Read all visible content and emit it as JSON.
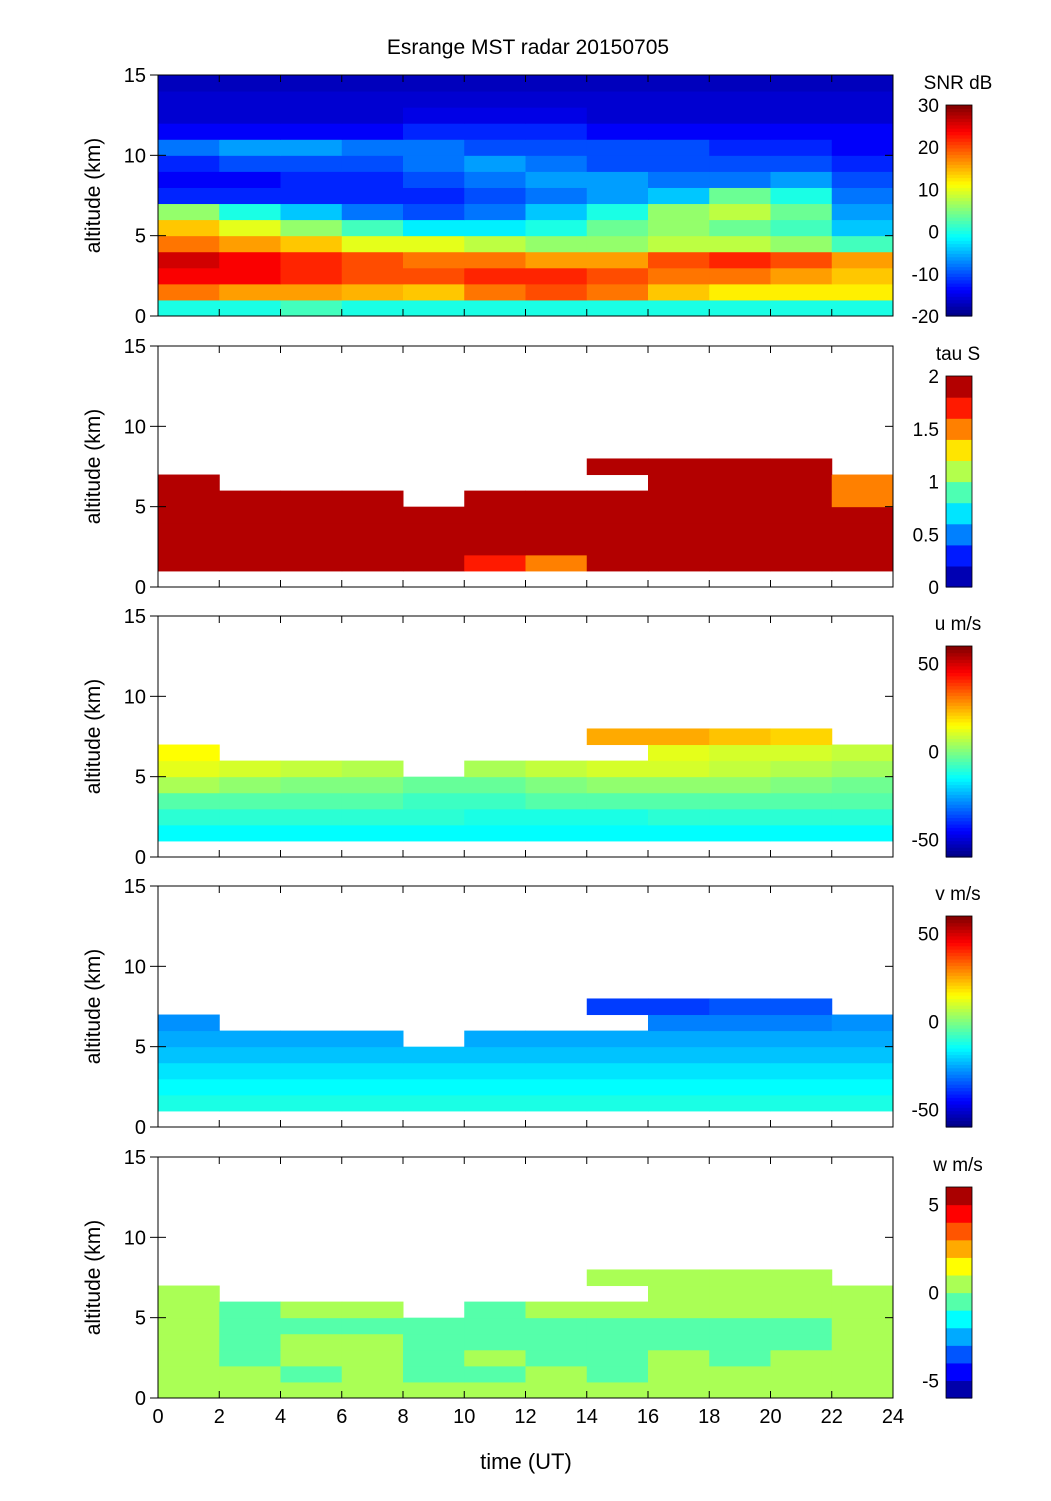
{
  "title": "Esrange MST radar 20150705",
  "xlabel": "time (UT)",
  "x_ticks": [
    0,
    2,
    4,
    6,
    8,
    10,
    12,
    14,
    16,
    18,
    20,
    22,
    24
  ],
  "chart_data": [
    {
      "type": "heatmap",
      "name": "snr",
      "ylabel": "altitude (km)",
      "colorbar_label": "SNR dB",
      "clim": [
        -20,
        30
      ],
      "colorbar_ticks": [
        30,
        20,
        10,
        0,
        -10,
        -20
      ],
      "levels": null,
      "xlim": [
        0,
        24
      ],
      "ylim": [
        0,
        15
      ],
      "y_ticks": [
        0,
        5,
        10,
        15
      ],
      "time_bins_start": [
        0,
        2,
        4,
        6,
        8,
        10,
        12,
        14,
        16,
        18,
        20,
        22
      ],
      "altitude_bins_start": [
        0,
        1,
        2,
        3,
        4,
        5,
        6,
        7,
        8,
        9,
        10,
        11,
        12,
        13,
        14
      ],
      "values": [
        [
          0,
          0,
          2,
          0,
          0,
          0,
          0,
          0,
          0,
          0,
          0,
          0
        ],
        [
          18,
          16,
          16,
          15,
          14,
          18,
          20,
          18,
          14,
          12,
          12,
          12
        ],
        [
          24,
          24,
          22,
          20,
          20,
          22,
          22,
          20,
          18,
          18,
          16,
          14
        ],
        [
          26,
          24,
          22,
          20,
          18,
          18,
          16,
          16,
          20,
          22,
          20,
          16
        ],
        [
          18,
          16,
          14,
          10,
          10,
          8,
          6,
          6,
          8,
          8,
          6,
          2
        ],
        [
          14,
          10,
          6,
          2,
          -2,
          -2,
          0,
          4,
          6,
          4,
          2,
          -4
        ],
        [
          6,
          0,
          -4,
          -8,
          -10,
          -8,
          -4,
          0,
          6,
          8,
          4,
          -6
        ],
        [
          -12,
          -12,
          -12,
          -12,
          -12,
          -10,
          -8,
          -6,
          -4,
          4,
          0,
          -8
        ],
        [
          -14,
          -14,
          -12,
          -12,
          -10,
          -8,
          -6,
          -6,
          -8,
          -8,
          -6,
          -10
        ],
        [
          -12,
          -10,
          -10,
          -10,
          -8,
          -6,
          -8,
          -10,
          -10,
          -10,
          -10,
          -12
        ],
        [
          -8,
          -6,
          -6,
          -8,
          -8,
          -10,
          -10,
          -10,
          -10,
          -12,
          -12,
          -14
        ],
        [
          -14,
          -14,
          -14,
          -14,
          -12,
          -12,
          -12,
          -14,
          -14,
          -14,
          -14,
          -14
        ],
        [
          -16,
          -16,
          -16,
          -16,
          -15,
          -15,
          -15,
          -16,
          -16,
          -16,
          -16,
          -16
        ],
        [
          -16,
          -16,
          -16,
          -16,
          -16,
          -16,
          -16,
          -16,
          -16,
          -16,
          -16,
          -16
        ],
        [
          -17,
          -17,
          -17,
          -17,
          -17,
          -17,
          -17,
          -17,
          -17,
          -17,
          -17,
          -17
        ]
      ]
    },
    {
      "type": "heatmap",
      "name": "tau",
      "ylabel": "altitude (km)",
      "colorbar_label": "tau S",
      "clim": [
        0,
        2
      ],
      "colorbar_ticks": [
        2,
        1.5,
        1,
        0.5,
        0
      ],
      "levels": 10,
      "xlim": [
        0,
        24
      ],
      "ylim": [
        0,
        15
      ],
      "y_ticks": [
        0,
        5,
        10,
        15
      ],
      "time_bins_start": [
        0,
        2,
        4,
        6,
        8,
        10,
        12,
        14,
        16,
        18,
        20,
        22
      ],
      "altitude_bins_start": [
        0,
        1,
        2,
        3,
        4,
        5,
        6,
        7,
        8,
        9,
        10,
        11,
        12,
        13,
        14
      ],
      "values": [
        [
          null,
          null,
          null,
          null,
          null,
          null,
          null,
          null,
          null,
          null,
          null,
          null
        ],
        [
          2,
          2,
          2,
          2,
          2,
          1.6,
          1.4,
          1.8,
          1.9,
          2,
          2,
          2
        ],
        [
          2,
          2,
          2,
          2,
          2,
          2,
          2,
          2,
          2,
          2,
          2,
          2
        ],
        [
          2,
          2,
          2,
          2,
          2,
          2,
          2,
          2,
          2,
          2,
          2,
          2
        ],
        [
          2,
          2,
          2,
          2,
          2,
          2,
          2,
          1.8,
          2,
          2,
          2,
          2
        ],
        [
          2,
          2,
          2,
          2,
          null,
          2,
          2,
          2,
          2,
          2,
          2,
          1.5
        ],
        [
          2,
          null,
          null,
          null,
          null,
          null,
          null,
          null,
          2,
          2,
          2,
          1.4
        ],
        [
          null,
          null,
          null,
          null,
          null,
          null,
          null,
          2,
          2,
          2,
          2,
          null
        ],
        [
          null,
          null,
          null,
          null,
          null,
          null,
          null,
          null,
          null,
          null,
          null,
          null
        ],
        [
          null,
          null,
          null,
          null,
          null,
          null,
          null,
          null,
          null,
          null,
          null,
          null
        ],
        [
          null,
          null,
          null,
          null,
          null,
          null,
          null,
          null,
          null,
          null,
          null,
          null
        ],
        [
          null,
          null,
          null,
          null,
          null,
          null,
          null,
          null,
          null,
          null,
          null,
          null
        ],
        [
          null,
          null,
          null,
          null,
          null,
          null,
          null,
          null,
          null,
          null,
          null,
          null
        ],
        [
          null,
          null,
          null,
          null,
          null,
          null,
          null,
          null,
          null,
          null,
          null,
          null
        ],
        [
          null,
          null,
          null,
          null,
          null,
          null,
          null,
          null,
          null,
          null,
          null,
          null
        ]
      ]
    },
    {
      "type": "heatmap",
      "name": "u",
      "ylabel": "altitude (km)",
      "colorbar_label": "u m/s",
      "clim": [
        -60,
        60
      ],
      "colorbar_ticks": [
        50,
        0,
        -50
      ],
      "levels": null,
      "xlim": [
        0,
        24
      ],
      "ylim": [
        0,
        15
      ],
      "y_ticks": [
        0,
        5,
        10,
        15
      ],
      "time_bins_start": [
        0,
        2,
        4,
        6,
        8,
        10,
        12,
        14,
        16,
        18,
        20,
        22
      ],
      "altitude_bins_start": [
        0,
        1,
        2,
        3,
        4,
        5,
        6,
        7,
        8,
        9,
        10,
        11,
        12,
        13,
        14
      ],
      "values": [
        [
          null,
          null,
          null,
          null,
          null,
          null,
          null,
          null,
          null,
          null,
          null,
          null
        ],
        [
          -15,
          -15,
          -15,
          -15,
          -15,
          -15,
          -15,
          -15,
          -15,
          -15,
          -15,
          -15
        ],
        [
          -10,
          -10,
          -10,
          -10,
          -10,
          -12,
          -12,
          -12,
          -10,
          -10,
          -10,
          -10
        ],
        [
          -5,
          -5,
          -5,
          -5,
          -8,
          -8,
          -5,
          -5,
          -5,
          -5,
          -5,
          -5
        ],
        [
          5,
          2,
          0,
          0,
          -3,
          -3,
          0,
          2,
          2,
          2,
          0,
          -2
        ],
        [
          12,
          10,
          8,
          6,
          null,
          5,
          8,
          10,
          10,
          8,
          6,
          4
        ],
        [
          15,
          null,
          null,
          null,
          null,
          null,
          null,
          null,
          12,
          10,
          10,
          8
        ],
        [
          null,
          null,
          null,
          null,
          null,
          null,
          null,
          25,
          25,
          22,
          20,
          null
        ],
        [
          null,
          null,
          null,
          null,
          null,
          null,
          null,
          null,
          null,
          null,
          null,
          null
        ],
        [
          null,
          null,
          null,
          null,
          null,
          null,
          null,
          null,
          null,
          null,
          null,
          null
        ],
        [
          null,
          null,
          null,
          null,
          null,
          null,
          null,
          null,
          null,
          null,
          null,
          null
        ],
        [
          null,
          null,
          null,
          null,
          null,
          null,
          null,
          null,
          null,
          null,
          null,
          null
        ],
        [
          null,
          null,
          null,
          null,
          null,
          null,
          null,
          null,
          null,
          null,
          null,
          null
        ],
        [
          null,
          null,
          null,
          null,
          null,
          null,
          null,
          null,
          null,
          null,
          null,
          null
        ],
        [
          null,
          null,
          null,
          null,
          null,
          null,
          null,
          null,
          null,
          null,
          null,
          null
        ]
      ]
    },
    {
      "type": "heatmap",
      "name": "v",
      "ylabel": "altitude (km)",
      "colorbar_label": "v m/s",
      "clim": [
        -60,
        60
      ],
      "colorbar_ticks": [
        50,
        0,
        -50
      ],
      "levels": null,
      "xlim": [
        0,
        24
      ],
      "ylim": [
        0,
        15
      ],
      "y_ticks": [
        0,
        5,
        10,
        15
      ],
      "time_bins_start": [
        0,
        2,
        4,
        6,
        8,
        10,
        12,
        14,
        16,
        18,
        20,
        22
      ],
      "altitude_bins_start": [
        0,
        1,
        2,
        3,
        4,
        5,
        6,
        7,
        8,
        9,
        10,
        11,
        12,
        13,
        14
      ],
      "values": [
        [
          null,
          null,
          null,
          null,
          null,
          null,
          null,
          null,
          null,
          null,
          null,
          null
        ],
        [
          -12,
          -12,
          -12,
          -12,
          -12,
          -12,
          -12,
          -12,
          -12,
          -12,
          -12,
          -12
        ],
        [
          -15,
          -15,
          -15,
          -15,
          -15,
          -15,
          -15,
          -15,
          -15,
          -15,
          -15,
          -15
        ],
        [
          -18,
          -18,
          -18,
          -18,
          -18,
          -18,
          -18,
          -18,
          -18,
          -18,
          -18,
          -18
        ],
        [
          -22,
          -22,
          -22,
          -22,
          -22,
          -22,
          -22,
          -22,
          -22,
          -22,
          -22,
          -22
        ],
        [
          -25,
          -25,
          -25,
          -25,
          null,
          -25,
          -25,
          -25,
          -25,
          -25,
          -25,
          -25
        ],
        [
          -28,
          null,
          null,
          null,
          null,
          null,
          null,
          null,
          -30,
          -30,
          -30,
          -28
        ],
        [
          null,
          null,
          null,
          null,
          null,
          null,
          null,
          -38,
          -38,
          -35,
          -35,
          null
        ],
        [
          null,
          null,
          null,
          null,
          null,
          null,
          null,
          null,
          null,
          null,
          null,
          null
        ],
        [
          null,
          null,
          null,
          null,
          null,
          null,
          null,
          null,
          null,
          null,
          null,
          null
        ],
        [
          null,
          null,
          null,
          null,
          null,
          null,
          null,
          null,
          null,
          null,
          null,
          null
        ],
        [
          null,
          null,
          null,
          null,
          null,
          null,
          null,
          null,
          null,
          null,
          null,
          null
        ],
        [
          null,
          null,
          null,
          null,
          null,
          null,
          null,
          null,
          null,
          null,
          null,
          null
        ],
        [
          null,
          null,
          null,
          null,
          null,
          null,
          null,
          null,
          null,
          null,
          null,
          null
        ],
        [
          null,
          null,
          null,
          null,
          null,
          null,
          null,
          null,
          null,
          null,
          null,
          null
        ]
      ]
    },
    {
      "type": "heatmap",
      "name": "w",
      "ylabel": "altitude (km)",
      "colorbar_label": "w m/s",
      "clim": [
        -6,
        6
      ],
      "colorbar_ticks": [
        5,
        0,
        -5
      ],
      "levels": 12,
      "xlim": [
        0,
        24
      ],
      "ylim": [
        0,
        15
      ],
      "y_ticks": [
        0,
        5,
        10,
        15
      ],
      "time_bins_start": [
        0,
        2,
        4,
        6,
        8,
        10,
        12,
        14,
        16,
        18,
        20,
        22
      ],
      "altitude_bins_start": [
        0,
        1,
        2,
        3,
        4,
        5,
        6,
        7,
        8,
        9,
        10,
        11,
        12,
        13,
        14
      ],
      "values": [
        [
          0.3,
          0.2,
          0.3,
          0.2,
          0.2,
          0.3,
          0.2,
          0.4,
          0.3,
          0.2,
          0.3,
          0.2
        ],
        [
          0.5,
          0,
          -0.3,
          0.2,
          -0.3,
          -0.8,
          0.2,
          -0.2,
          0,
          0,
          0,
          0
        ],
        [
          0.8,
          -0.3,
          0.3,
          0.5,
          -0.2,
          0.5,
          -0.4,
          -0.3,
          0,
          -0.2,
          0,
          0
        ],
        [
          0.2,
          -0.4,
          0.2,
          0.3,
          -0.3,
          -0.5,
          -0.5,
          -0.6,
          -0.4,
          -0.4,
          -0.2,
          0
        ],
        [
          0,
          -0.5,
          -0.3,
          -0.2,
          -0.4,
          -0.6,
          -0.6,
          -0.3,
          -0.3,
          -0.2,
          -0.3,
          0
        ],
        [
          0,
          -0.3,
          0,
          0,
          null,
          -0.2,
          0,
          0.1,
          0.1,
          0,
          0.2,
          0.2
        ],
        [
          0.2,
          null,
          null,
          null,
          null,
          null,
          null,
          null,
          0.2,
          0.2,
          0.2,
          0.3
        ],
        [
          null,
          null,
          null,
          null,
          null,
          null,
          null,
          0.2,
          0.3,
          0.3,
          0.2,
          null
        ],
        [
          null,
          null,
          null,
          null,
          null,
          null,
          null,
          null,
          null,
          null,
          null,
          null
        ],
        [
          null,
          null,
          null,
          null,
          null,
          null,
          null,
          null,
          null,
          null,
          null,
          null
        ],
        [
          null,
          null,
          null,
          null,
          null,
          null,
          null,
          null,
          null,
          null,
          null,
          null
        ],
        [
          null,
          null,
          null,
          null,
          null,
          null,
          null,
          null,
          null,
          null,
          null,
          null
        ],
        [
          null,
          null,
          null,
          null,
          null,
          null,
          null,
          null,
          null,
          null,
          null,
          null
        ],
        [
          null,
          null,
          null,
          null,
          null,
          null,
          null,
          null,
          null,
          null,
          null,
          null
        ],
        [
          null,
          null,
          null,
          null,
          null,
          null,
          null,
          null,
          null,
          null,
          null,
          null
        ]
      ]
    }
  ]
}
